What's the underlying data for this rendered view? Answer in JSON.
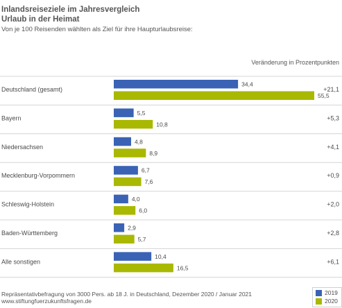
{
  "title_line1": "Inlandsreiseziele im Jahresvergleich",
  "title_line2": "Urlaub in der Heimat",
  "subtitle": "Von je 100 Reisenden wählten als Ziel für ihre Haupturlaubsreise:",
  "change_header": "Veränderung in Prozentpunkten",
  "footer_line1": "Repräsentativbefragung von 3000 Pers. ab 18 J. in Deutschland, Dezember 2020 / Januar 2021",
  "footer_line2": "www.stiftungfuerzukunftsfragen.de",
  "colors": {
    "y2019": "#3a63b5",
    "y2020": "#a9b800",
    "divider": "#d4d4d4"
  },
  "chart_data": {
    "type": "bar",
    "orientation": "horizontal",
    "categories": [
      "Deutschland (gesamt)",
      "Bayern",
      "Niedersachsen",
      "Mecklenburg-Vorpommern",
      "Schleswig-Holstein",
      "Baden-Württemberg",
      "Alle sonstigen"
    ],
    "series": [
      {
        "name": "2019",
        "values": [
          34.4,
          5.5,
          4.8,
          6.7,
          4.0,
          2.9,
          10.4
        ],
        "labels": [
          "34,4",
          "5,5",
          "4,8",
          "6,7",
          "4,0",
          "2,9",
          "10,4"
        ]
      },
      {
        "name": "2020",
        "values": [
          55.5,
          10.8,
          8.9,
          7.6,
          6.0,
          5.7,
          16.5
        ],
        "labels": [
          "55,5",
          "10,8",
          "8,9",
          "7,6",
          "6,0",
          "5,7",
          "16,5"
        ]
      }
    ],
    "changes": [
      "+21,1",
      "+5,3",
      "+4,1",
      "+0,9",
      "+2,0",
      "+2,8",
      "+6,1"
    ],
    "legend": [
      "2019",
      "2020"
    ],
    "legend_position": "bottom-right",
    "xlim": [
      0,
      55.5
    ],
    "grid": false
  }
}
